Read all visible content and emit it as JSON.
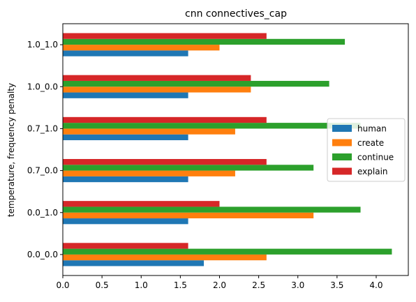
{
  "chart_data": {
    "type": "bar",
    "orientation": "horizontal",
    "title": "cnn connectives_cap",
    "xlabel": "",
    "ylabel": "temperature, frequency penalty",
    "categories": [
      "0.0_0.0",
      "0.0_1.0",
      "0.7_0.0",
      "0.7_1.0",
      "1.0_0.0",
      "1.0_1.0"
    ],
    "series": [
      {
        "name": "human",
        "color": "#1f77b4",
        "values": [
          1.8,
          1.6,
          1.6,
          1.6,
          1.6,
          1.6
        ]
      },
      {
        "name": "create",
        "color": "#ff7f0e",
        "values": [
          2.6,
          3.2,
          2.2,
          2.2,
          2.4,
          2.0
        ]
      },
      {
        "name": "continue",
        "color": "#2ca02c",
        "values": [
          4.2,
          3.8,
          3.2,
          3.8,
          3.4,
          3.6
        ]
      },
      {
        "name": "explain",
        "color": "#d62728",
        "values": [
          1.6,
          2.0,
          2.6,
          2.6,
          2.4,
          2.6
        ]
      }
    ],
    "xlim": [
      0,
      4.41
    ],
    "xticks": [
      "0.0",
      "0.5",
      "1.0",
      "1.5",
      "2.0",
      "2.5",
      "3.0",
      "3.5",
      "4.0"
    ],
    "grid": false,
    "legend_position": "center-right"
  }
}
